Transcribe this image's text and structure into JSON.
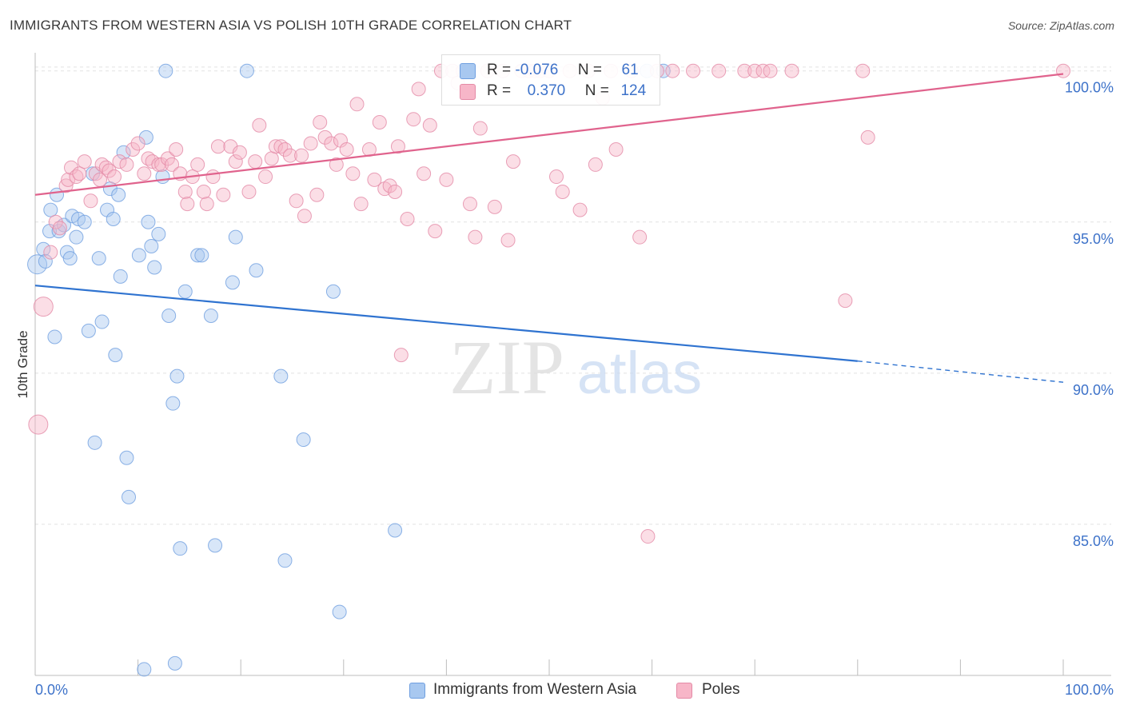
{
  "title": "IMMIGRANTS FROM WESTERN ASIA VS POLISH 10TH GRADE CORRELATION CHART",
  "source": "Source: ZipAtlas.com",
  "watermark": {
    "zip": "ZIP",
    "atlas": "atlas"
  },
  "legend": {
    "rows": [
      {
        "r_label": "R =",
        "r_value": "-0.076",
        "n_label": "N =",
        "n_value": "61",
        "color": "#a8c8f0"
      },
      {
        "r_label": "R =",
        "r_value": "0.370",
        "n_label": "N =",
        "n_value": "124",
        "color": "#f7b6c8"
      }
    ]
  },
  "bottom_legend": {
    "series_a": "Immigrants from Western Asia",
    "series_b": "Poles"
  },
  "chart_data": {
    "type": "scatter",
    "title": "IMMIGRANTS FROM WESTERN ASIA VS POLISH 10TH GRADE CORRELATION CHART",
    "xlabel": "",
    "ylabel": "10th Grade",
    "xlim": [
      0,
      100
    ],
    "ylim": [
      80,
      100.6
    ],
    "x_ticks": [
      "0.0%",
      "100.0%"
    ],
    "y_ticks": [
      {
        "value": 85,
        "label": "85.0%"
      },
      {
        "value": 90,
        "label": "90.0%"
      },
      {
        "value": 95,
        "label": "95.0%"
      },
      {
        "value": 100,
        "label": "100.0%"
      }
    ],
    "grid": true,
    "legend_position": "top-center",
    "series": [
      {
        "name": "Immigrants from Western Asia",
        "color": "#6f9fe0",
        "fill": "#a8c8f0",
        "trend": {
          "x0": 0,
          "y0": 92.9,
          "x1": 80,
          "y1": 90.4,
          "dash_to_x": 100,
          "dash_to_y": 89.7,
          "color": "#2f73d0"
        },
        "points": [
          [
            0.2,
            93.6
          ],
          [
            0.8,
            94.1
          ],
          [
            1.0,
            93.7
          ],
          [
            1.4,
            94.7
          ],
          [
            1.5,
            95.4
          ],
          [
            1.9,
            91.2
          ],
          [
            2.1,
            95.9
          ],
          [
            2.3,
            94.7
          ],
          [
            2.8,
            94.9
          ],
          [
            3.1,
            94.0
          ],
          [
            3.4,
            93.8
          ],
          [
            3.6,
            95.2
          ],
          [
            4.0,
            94.5
          ],
          [
            4.2,
            95.1
          ],
          [
            4.8,
            95.0
          ],
          [
            5.2,
            91.4
          ],
          [
            5.6,
            96.6
          ],
          [
            5.8,
            87.7
          ],
          [
            6.2,
            93.8
          ],
          [
            6.5,
            91.7
          ],
          [
            7.0,
            95.4
          ],
          [
            7.3,
            96.1
          ],
          [
            7.6,
            95.1
          ],
          [
            7.8,
            90.6
          ],
          [
            8.1,
            95.9
          ],
          [
            8.3,
            93.2
          ],
          [
            8.6,
            97.3
          ],
          [
            8.9,
            87.2
          ],
          [
            9.1,
            85.9
          ],
          [
            10.1,
            93.9
          ],
          [
            10.6,
            80.2
          ],
          [
            10.8,
            97.8
          ],
          [
            11.0,
            95.0
          ],
          [
            11.3,
            94.2
          ],
          [
            11.6,
            93.5
          ],
          [
            12.0,
            94.6
          ],
          [
            12.4,
            96.5
          ],
          [
            12.7,
            100.0
          ],
          [
            13.0,
            91.9
          ],
          [
            13.4,
            89.0
          ],
          [
            13.6,
            80.4
          ],
          [
            13.8,
            89.9
          ],
          [
            14.1,
            84.2
          ],
          [
            14.6,
            92.7
          ],
          [
            15.8,
            93.9
          ],
          [
            16.2,
            93.9
          ],
          [
            17.1,
            91.9
          ],
          [
            17.5,
            84.3
          ],
          [
            19.2,
            93.0
          ],
          [
            19.5,
            94.5
          ],
          [
            20.6,
            100.0
          ],
          [
            21.5,
            93.4
          ],
          [
            23.9,
            89.9
          ],
          [
            24.3,
            83.8
          ],
          [
            26.1,
            87.8
          ],
          [
            29.0,
            92.7
          ],
          [
            29.6,
            82.1
          ],
          [
            35.0,
            84.8
          ],
          [
            59.5,
            100.0
          ],
          [
            61.1,
            100.0
          ]
        ]
      },
      {
        "name": "Poles",
        "color": "#e48aa6",
        "fill": "#f7b6c8",
        "trend": {
          "x0": 0,
          "y0": 95.9,
          "x1": 100,
          "y1": 99.9,
          "color": "#e0638d"
        },
        "points": [
          [
            0.3,
            88.3
          ],
          [
            0.8,
            92.2
          ],
          [
            1.5,
            94.0
          ],
          [
            2.0,
            95.0
          ],
          [
            2.4,
            94.8
          ],
          [
            3.0,
            96.2
          ],
          [
            3.2,
            96.4
          ],
          [
            3.5,
            96.8
          ],
          [
            4.0,
            96.5
          ],
          [
            4.3,
            96.6
          ],
          [
            4.8,
            97.0
          ],
          [
            5.4,
            95.7
          ],
          [
            5.9,
            96.6
          ],
          [
            6.3,
            96.4
          ],
          [
            6.5,
            96.9
          ],
          [
            6.9,
            96.8
          ],
          [
            7.2,
            96.7
          ],
          [
            7.7,
            96.5
          ],
          [
            8.2,
            97.0
          ],
          [
            8.9,
            96.9
          ],
          [
            9.5,
            97.4
          ],
          [
            10.0,
            97.6
          ],
          [
            10.6,
            96.6
          ],
          [
            11.0,
            97.1
          ],
          [
            11.4,
            97.0
          ],
          [
            12.0,
            96.9
          ],
          [
            12.3,
            96.9
          ],
          [
            12.9,
            97.1
          ],
          [
            13.3,
            96.9
          ],
          [
            13.7,
            97.4
          ],
          [
            14.1,
            96.6
          ],
          [
            14.6,
            96.0
          ],
          [
            14.8,
            95.6
          ],
          [
            15.3,
            96.5
          ],
          [
            15.8,
            96.9
          ],
          [
            16.4,
            96.0
          ],
          [
            16.7,
            95.6
          ],
          [
            17.3,
            96.5
          ],
          [
            17.8,
            97.5
          ],
          [
            18.3,
            95.9
          ],
          [
            19.0,
            97.5
          ],
          [
            19.5,
            97.0
          ],
          [
            19.9,
            97.3
          ],
          [
            20.8,
            96.0
          ],
          [
            21.4,
            97.0
          ],
          [
            21.8,
            98.2
          ],
          [
            22.4,
            96.5
          ],
          [
            23.0,
            97.1
          ],
          [
            23.4,
            97.5
          ],
          [
            23.9,
            97.5
          ],
          [
            24.3,
            97.4
          ],
          [
            24.8,
            97.2
          ],
          [
            25.4,
            95.7
          ],
          [
            25.9,
            97.2
          ],
          [
            26.2,
            95.2
          ],
          [
            26.8,
            97.6
          ],
          [
            27.4,
            95.9
          ],
          [
            27.7,
            98.3
          ],
          [
            28.2,
            97.8
          ],
          [
            28.8,
            97.6
          ],
          [
            29.3,
            96.9
          ],
          [
            29.7,
            97.7
          ],
          [
            30.3,
            97.4
          ],
          [
            30.9,
            96.6
          ],
          [
            31.3,
            98.9
          ],
          [
            31.7,
            95.6
          ],
          [
            32.5,
            97.4
          ],
          [
            33.0,
            96.4
          ],
          [
            33.5,
            98.3
          ],
          [
            34.0,
            96.1
          ],
          [
            34.5,
            96.2
          ],
          [
            35.0,
            96.0
          ],
          [
            35.3,
            97.5
          ],
          [
            35.6,
            90.6
          ],
          [
            36.2,
            95.1
          ],
          [
            36.8,
            98.4
          ],
          [
            37.3,
            99.4
          ],
          [
            37.8,
            96.6
          ],
          [
            38.4,
            98.2
          ],
          [
            38.9,
            94.7
          ],
          [
            39.5,
            100.0
          ],
          [
            40.0,
            96.4
          ],
          [
            40.6,
            100.0
          ],
          [
            41.1,
            99.6
          ],
          [
            41.6,
            100.0
          ],
          [
            42.3,
            95.6
          ],
          [
            42.8,
            94.5
          ],
          [
            43.3,
            98.1
          ],
          [
            44.0,
            100.0
          ],
          [
            44.7,
            95.5
          ],
          [
            45.5,
            100.0
          ],
          [
            46.0,
            94.4
          ],
          [
            46.5,
            97.0
          ],
          [
            47.3,
            100.0
          ],
          [
            48.0,
            100.0
          ],
          [
            48.6,
            100.0
          ],
          [
            49.1,
            100.0
          ],
          [
            50.0,
            100.0
          ],
          [
            50.7,
            96.5
          ],
          [
            51.3,
            96.0
          ],
          [
            52.0,
            100.0
          ],
          [
            53.0,
            95.4
          ],
          [
            53.8,
            100.0
          ],
          [
            54.5,
            96.9
          ],
          [
            55.2,
            99.1
          ],
          [
            56.0,
            100.0
          ],
          [
            56.5,
            97.4
          ],
          [
            58.0,
            100.0
          ],
          [
            58.8,
            94.5
          ],
          [
            59.6,
            84.6
          ],
          [
            60.5,
            100.0
          ],
          [
            62.0,
            100.0
          ],
          [
            64.0,
            100.0
          ],
          [
            66.5,
            100.0
          ],
          [
            69.0,
            100.0
          ],
          [
            70.0,
            100.0
          ],
          [
            70.8,
            100.0
          ],
          [
            71.5,
            100.0
          ],
          [
            73.6,
            100.0
          ],
          [
            78.8,
            92.4
          ],
          [
            80.5,
            100.0
          ],
          [
            81.0,
            97.8
          ],
          [
            100.0,
            100.0
          ]
        ]
      }
    ]
  }
}
